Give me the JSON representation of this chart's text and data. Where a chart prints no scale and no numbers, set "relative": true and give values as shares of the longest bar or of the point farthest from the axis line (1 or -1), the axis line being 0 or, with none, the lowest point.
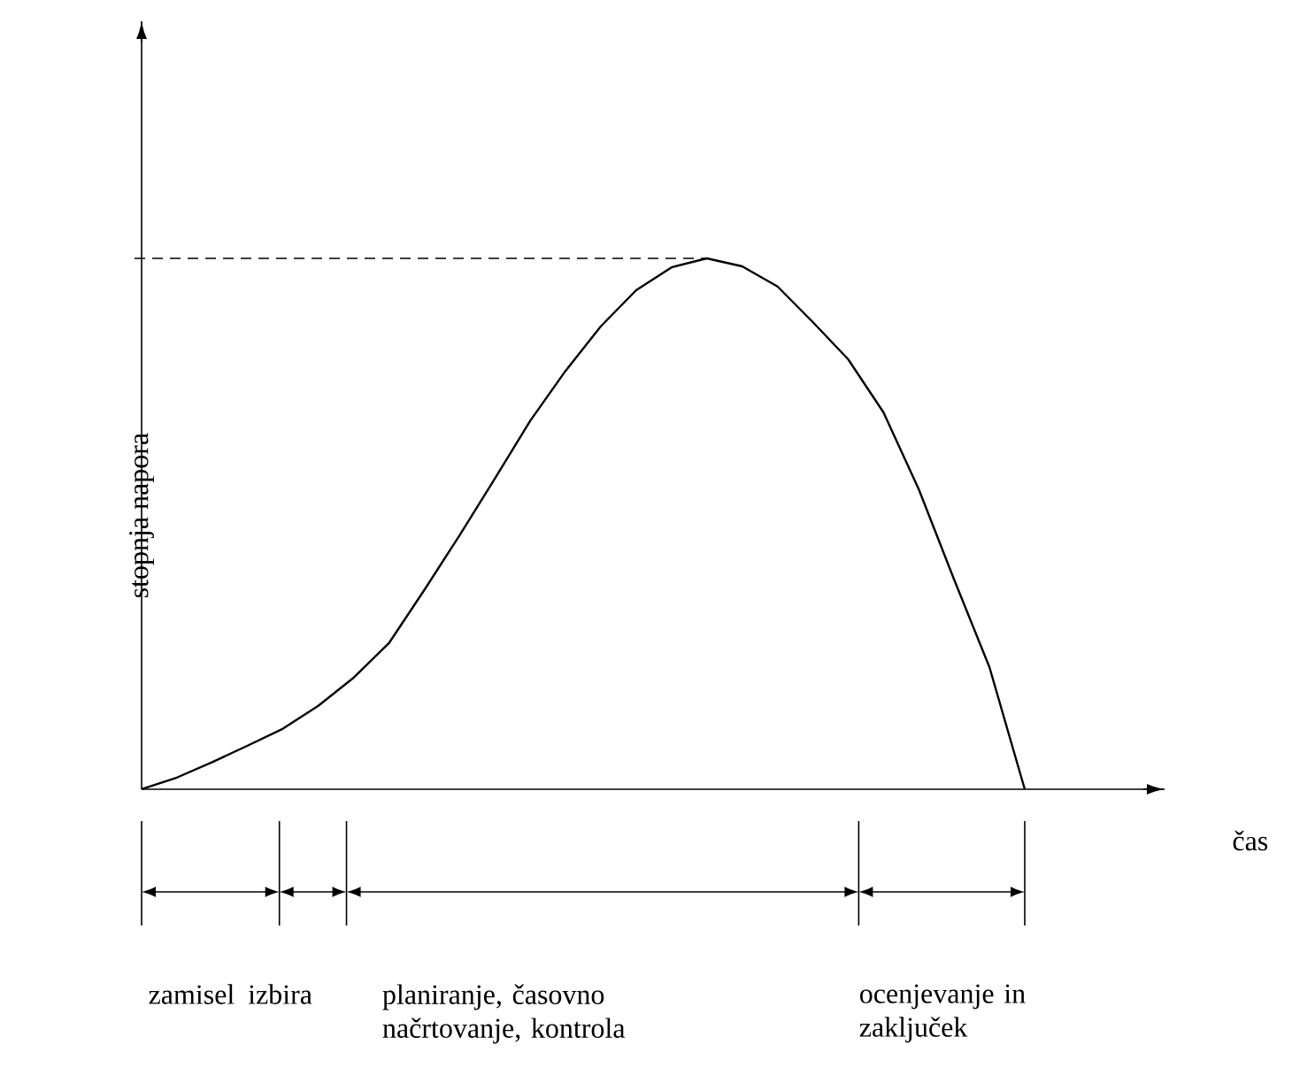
{
  "chart_data": {
    "type": "line",
    "relative": true,
    "ylabel": "stopnja napora",
    "tick_labels": false,
    "line_style": "solid",
    "color": "#000000",
    "categories": [
      null,
      null,
      null,
      null,
      null,
      null,
      null,
      null,
      null,
      null,
      null,
      null,
      null,
      null,
      null,
      null,
      null,
      null,
      null,
      null,
      null,
      null,
      null,
      null,
      null,
      null
    ],
    "values": [
      0,
      0.022,
      0.051,
      0.082,
      0.114,
      0.157,
      0.21,
      0.275,
      0.375,
      0.478,
      0.585,
      0.694,
      0.788,
      0.872,
      0.94,
      0.983,
      1,
      0.985,
      0.947,
      0.88,
      0.81,
      0.71,
      0.565,
      0.395,
      0.23,
      0
    ],
    "ref_lines": [
      {
        "axis": "y",
        "value": 1,
        "line_style": "dashed",
        "color": "#000000"
      }
    ],
    "annotations": [
      "čas",
      "zamisel",
      "izbira",
      "planiranje, časovno načrtovanje, kontrola",
      "ocenjevanje in zaključek"
    ]
  }
}
